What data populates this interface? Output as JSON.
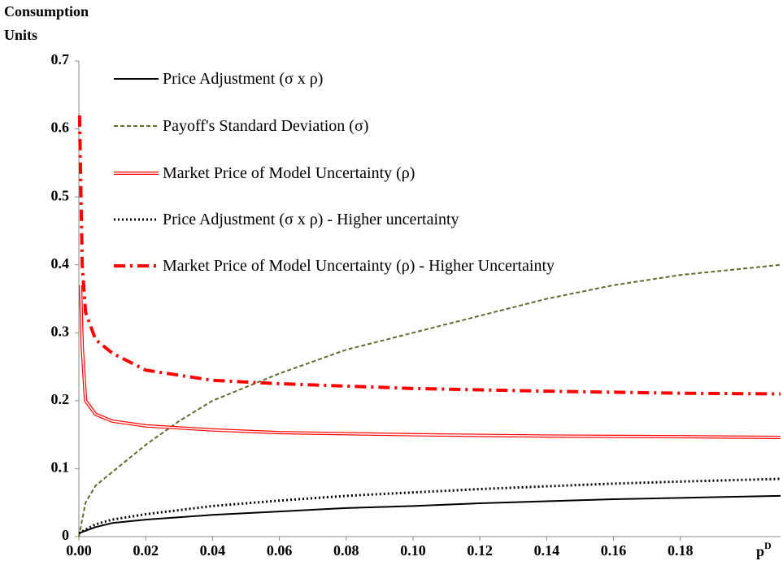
{
  "chart_data": {
    "type": "line",
    "y_label": [
      "Consumption",
      "Units"
    ],
    "x_label": "p",
    "x_label_sup": "D",
    "xlim": [
      0,
      0.21
    ],
    "xticks": [
      {
        "value": 0,
        "label": "0.00"
      },
      {
        "value": 0.02,
        "label": "0.02"
      },
      {
        "value": 0.04,
        "label": "0.04"
      },
      {
        "value": 0.06,
        "label": "0.06"
      },
      {
        "value": 0.08,
        "label": "0.08"
      },
      {
        "value": 0.1,
        "label": "0.10"
      },
      {
        "value": 0.12,
        "label": "0.12"
      },
      {
        "value": 0.14,
        "label": "0.14"
      },
      {
        "value": 0.16,
        "label": "0.16"
      },
      {
        "value": 0.18,
        "label": "0.18"
      }
    ],
    "ylim": [
      0,
      0.7
    ],
    "yticks": [
      0,
      0.1,
      0.2,
      0.3,
      0.4,
      0.5,
      0.6,
      0.7
    ],
    "legend": "top-left",
    "series": [
      {
        "name": "Price Adjustment (σ x ρ)",
        "color": "#000000",
        "style": "solid",
        "x": [
          0,
          0.005,
          0.01,
          0.02,
          0.04,
          0.06,
          0.08,
          0.1,
          0.12,
          0.14,
          0.16,
          0.18,
          0.21
        ],
        "values": [
          0.005,
          0.014,
          0.02,
          0.025,
          0.032,
          0.037,
          0.042,
          0.045,
          0.049,
          0.052,
          0.055,
          0.057,
          0.06
        ]
      },
      {
        "name": "Payoff's Standard Deviation (σ)",
        "color": "#5a6e32",
        "style": "dashed",
        "x": [
          0,
          0.002,
          0.005,
          0.01,
          0.02,
          0.03,
          0.04,
          0.05,
          0.06,
          0.08,
          0.1,
          0.12,
          0.14,
          0.16,
          0.18,
          0.21
        ],
        "values": [
          0,
          0.05,
          0.075,
          0.095,
          0.135,
          0.17,
          0.2,
          0.22,
          0.24,
          0.275,
          0.3,
          0.325,
          0.35,
          0.37,
          0.385,
          0.4
        ]
      },
      {
        "name": "Market Price of Model Uncertainty (ρ)",
        "color": "#ff0000",
        "style": "double",
        "x": [
          0.0005,
          0.001,
          0.002,
          0.005,
          0.01,
          0.02,
          0.04,
          0.06,
          0.1,
          0.14,
          0.18,
          0.21
        ],
        "values": [
          0.37,
          0.28,
          0.2,
          0.18,
          0.17,
          0.163,
          0.157,
          0.153,
          0.15,
          0.148,
          0.147,
          0.146
        ]
      },
      {
        "name": "Price Adjustment (σ x ρ) - Higher uncertainty",
        "color": "#000000",
        "style": "dotted",
        "x": [
          0,
          0.005,
          0.01,
          0.02,
          0.04,
          0.06,
          0.08,
          0.1,
          0.12,
          0.14,
          0.16,
          0.18,
          0.21
        ],
        "values": [
          0.005,
          0.018,
          0.025,
          0.033,
          0.045,
          0.053,
          0.06,
          0.065,
          0.07,
          0.074,
          0.078,
          0.081,
          0.085
        ]
      },
      {
        "name": "Market Price of Model Uncertainty (ρ) - Higher Uncertainty",
        "color": "#ff0000",
        "style": "dashdot",
        "x": [
          0.0002,
          0.001,
          0.002,
          0.005,
          0.01,
          0.02,
          0.04,
          0.06,
          0.1,
          0.14,
          0.18,
          0.21
        ],
        "values": [
          0.62,
          0.4,
          0.33,
          0.29,
          0.27,
          0.245,
          0.23,
          0.225,
          0.218,
          0.214,
          0.211,
          0.21
        ]
      }
    ]
  }
}
